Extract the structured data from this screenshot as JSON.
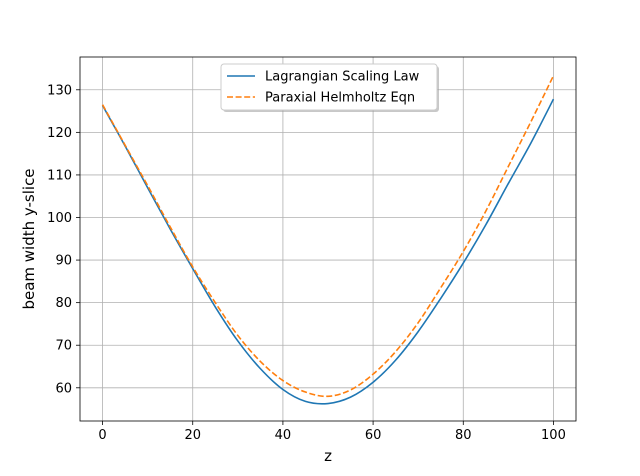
{
  "chart_data": {
    "type": "line",
    "title": "",
    "xlabel": "z",
    "ylabel": "beam width y-slice",
    "xlim": [
      -5,
      105
    ],
    "ylim": [
      52.2,
      137.7
    ],
    "xticks": [
      0,
      20,
      40,
      60,
      80,
      100
    ],
    "yticks": [
      60,
      70,
      80,
      90,
      100,
      110,
      120,
      130
    ],
    "grid": true,
    "legend_position": "upper center",
    "series": [
      {
        "name": "Lagrangian Scaling Law",
        "color": "#1f77b4",
        "style": "solid",
        "x": [
          0,
          5,
          10,
          15,
          20,
          25,
          30,
          35,
          40,
          45,
          50,
          55,
          60,
          65,
          70,
          75,
          80,
          85,
          90,
          95,
          100
        ],
        "values": [
          126.3,
          116.8,
          107.0,
          97.3,
          88.0,
          79.0,
          71.0,
          64.5,
          59.6,
          56.8,
          56.3,
          57.8,
          61.3,
          66.5,
          73.2,
          81.0,
          89.3,
          98.3,
          108.0,
          117.5,
          127.8
        ]
      },
      {
        "name": "Paraxial Helmholtz Eqn",
        "color": "#ff7f0e",
        "style": "dashed",
        "x": [
          0,
          5,
          10,
          15,
          20,
          25,
          30,
          35,
          40,
          45,
          50,
          55,
          60,
          65,
          70,
          75,
          80,
          85,
          90,
          95,
          100
        ],
        "values": [
          126.5,
          117.0,
          107.5,
          97.8,
          88.4,
          80.0,
          72.3,
          66.2,
          61.7,
          59.0,
          58.0,
          59.5,
          63.2,
          68.5,
          75.3,
          83.5,
          92.0,
          101.5,
          112.0,
          122.5,
          133.3
        ]
      }
    ]
  }
}
